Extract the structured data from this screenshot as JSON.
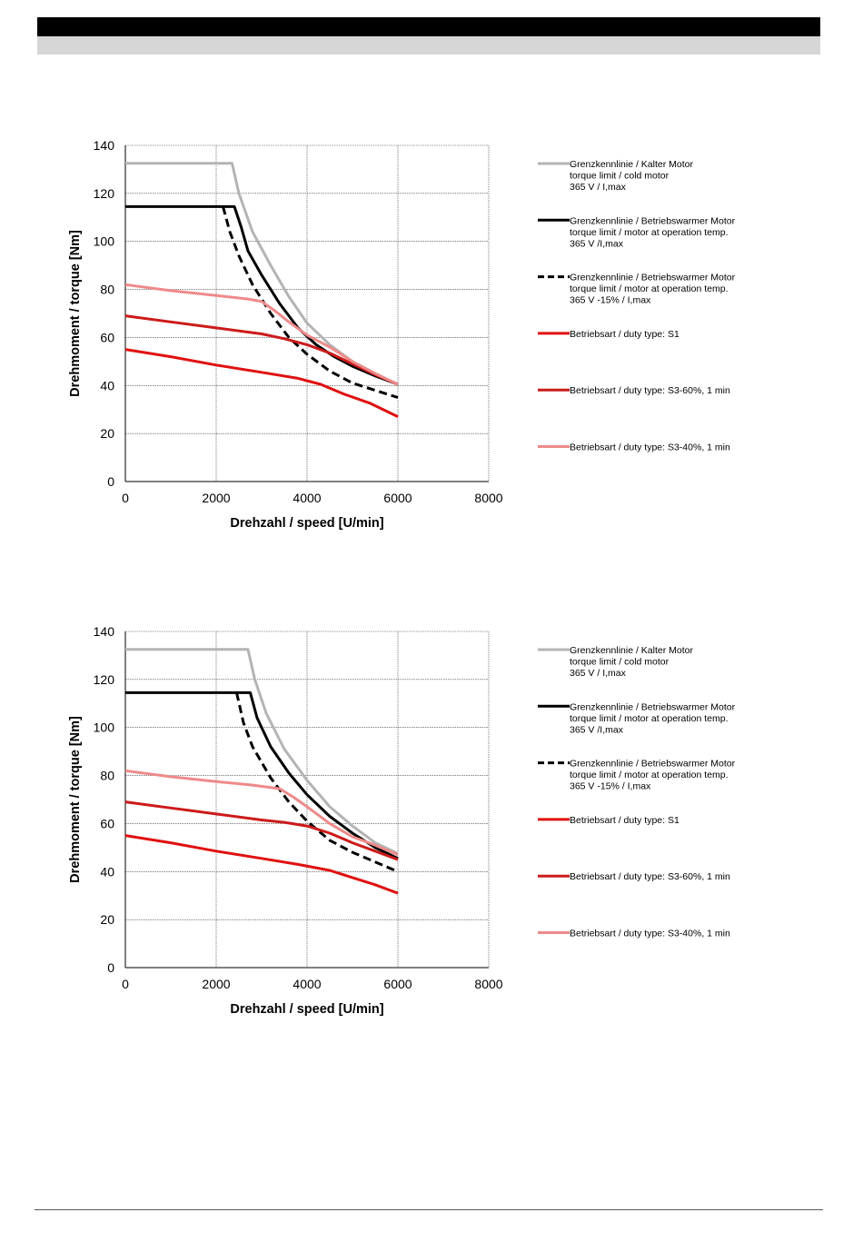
{
  "chart_data": [
    {
      "type": "line",
      "xlabel": "Drehzahl / speed [U/min]",
      "ylabel": "Drehmoment / torque [Nm]",
      "xlim": [
        0,
        8000
      ],
      "ylim": [
        0,
        140
      ],
      "xticks": [
        0,
        2000,
        4000,
        6000,
        8000
      ],
      "yticks": [
        0,
        20,
        40,
        60,
        80,
        100,
        120,
        140
      ],
      "grid": true,
      "legend_position": "right",
      "series": [
        {
          "name": [
            "Grenzkennlinie / Kalter Motor",
            "torque limit / cold  motor",
            "365 V / I,max"
          ],
          "color": "#b4b4b4",
          "dash": "solid",
          "x": [
            0,
            2350,
            2500,
            2800,
            3200,
            3600,
            4000,
            4500,
            5000,
            5500,
            6000
          ],
          "y": [
            132.5,
            132.5,
            120,
            104,
            90,
            77,
            66,
            57,
            50,
            45,
            40.5
          ]
        },
        {
          "name": [
            "Grenzkennlinie / Betriebswarmer Motor",
            "torque limit / motor at operation temp.",
            "365 V /I,max"
          ],
          "color": "#000000",
          "dash": "solid",
          "x": [
            0,
            2400,
            2550,
            2700,
            3000,
            3400,
            3800,
            4200,
            4600,
            5000,
            5500,
            6000
          ],
          "y": [
            114.5,
            114.5,
            106,
            96,
            86,
            74,
            64,
            57,
            52,
            48,
            44,
            40.5
          ]
        },
        {
          "name": [
            "Grenzkennlinie / Betriebswarmer Motor",
            "torque limit / motor at operation temp.",
            "365 V  -15% / I,max"
          ],
          "color": "#000000",
          "dash": "dashed",
          "x": [
            2150,
            2300,
            2500,
            2800,
            3200,
            3600,
            4000,
            4500,
            5000,
            5500,
            6000
          ],
          "y": [
            114.5,
            104,
            94,
            82,
            70,
            60,
            53,
            46,
            41,
            38,
            35
          ]
        },
        {
          "name": [
            "Betriebsart / duty type: S1"
          ],
          "color": "#e01010",
          "dash": "solid",
          "x": [
            0,
            1000,
            2000,
            3000,
            3800,
            4300,
            4800,
            5400,
            6000
          ],
          "y": [
            55,
            52,
            48.5,
            45.5,
            43,
            40.5,
            36.5,
            32.5,
            27
          ]
        },
        {
          "name": [
            "Betriebsart / duty type: S3-60%, 1 min"
          ],
          "color": "#cc1a1a",
          "dash": "solid",
          "x": [
            0,
            1000,
            2000,
            3000,
            3500,
            4000,
            4500,
            5000,
            5500,
            6000
          ],
          "y": [
            69,
            66.5,
            64,
            61.5,
            59.5,
            57,
            53.5,
            49,
            44.5,
            40.5
          ]
        },
        {
          "name": [
            "Betriebsart / duty type: S3-40%, 1 min"
          ],
          "color": "#ee8a8a",
          "dash": "solid",
          "x": [
            0,
            1000,
            2000,
            2700,
            3000,
            3300,
            3600,
            4000,
            4500,
            5000,
            5500,
            6000
          ],
          "y": [
            82,
            79.5,
            77.5,
            76,
            75,
            71,
            66.5,
            61,
            56,
            50,
            45,
            40.5
          ]
        }
      ]
    },
    {
      "type": "line",
      "xlabel": "Drehzahl / speed [U/min]",
      "ylabel": "Drehmoment / torque [Nm]",
      "xlim": [
        0,
        8000
      ],
      "ylim": [
        0,
        140
      ],
      "xticks": [
        0,
        2000,
        4000,
        6000,
        8000
      ],
      "yticks": [
        0,
        20,
        40,
        60,
        80,
        100,
        120,
        140
      ],
      "grid": true,
      "legend_position": "right",
      "series": [
        {
          "name": [
            "Grenzkennlinie / Kalter Motor",
            "torque limit / cold  motor",
            "365 V / I,max"
          ],
          "color": "#b4b4b4",
          "dash": "solid",
          "x": [
            0,
            2700,
            2850,
            3100,
            3500,
            4000,
            4500,
            5000,
            5500,
            6000
          ],
          "y": [
            132.5,
            132.5,
            120,
            106,
            91,
            78,
            67,
            59,
            52,
            47.5
          ]
        },
        {
          "name": [
            "Grenzkennlinie / Betriebswarmer Motor",
            "torque limit / motor at operation temp.",
            "365 V /I,max"
          ],
          "color": "#000000",
          "dash": "solid",
          "x": [
            0,
            2750,
            2900,
            3200,
            3600,
            4000,
            4500,
            5000,
            5500,
            6000
          ],
          "y": [
            114.5,
            114.5,
            104,
            92,
            81,
            72,
            63,
            56,
            50,
            45.5
          ]
        },
        {
          "name": [
            "Grenzkennlinie / Betriebswarmer Motor",
            "torque limit / motor at operation temp.",
            "365 V  -15% / I,max"
          ],
          "color": "#000000",
          "dash": "dashed",
          "x": [
            2450,
            2600,
            2800,
            3200,
            3600,
            4000,
            4500,
            5000,
            5500,
            6000
          ],
          "y": [
            114.5,
            102,
            92,
            79,
            69,
            61,
            53,
            48,
            44,
            40
          ]
        },
        {
          "name": [
            "Betriebsart / duty type: S1"
          ],
          "color": "#e01010",
          "dash": "solid",
          "x": [
            0,
            1000,
            2000,
            3000,
            3800,
            4500,
            5000,
            5500,
            6000
          ],
          "y": [
            55,
            52,
            48.5,
            45.5,
            43,
            40.5,
            37.5,
            34.5,
            31
          ]
        },
        {
          "name": [
            "Betriebsart / duty type: S3-60%, 1 min"
          ],
          "color": "#cc1a1a",
          "dash": "solid",
          "x": [
            0,
            1000,
            2000,
            3000,
            3500,
            4000,
            4500,
            5000,
            5500,
            6000
          ],
          "y": [
            69,
            66.5,
            64,
            61.5,
            60.5,
            59,
            56,
            52,
            48.5,
            45
          ]
        },
        {
          "name": [
            "Betriebsart / duty type: S3-40%, 1 min"
          ],
          "color": "#ee8a8a",
          "dash": "solid",
          "x": [
            0,
            1000,
            2000,
            2800,
            3400,
            3700,
            4000,
            4500,
            5000,
            5500,
            6000
          ],
          "y": [
            82,
            79.5,
            77.5,
            76,
            74.5,
            71,
            67,
            60,
            54.5,
            51,
            47
          ]
        }
      ]
    }
  ]
}
